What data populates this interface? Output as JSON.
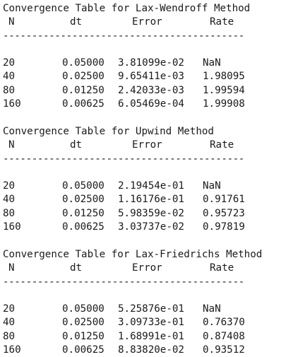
{
  "tables": [
    {
      "title": "Convergence Table for Lax-Wendroff Method",
      "headers": {
        "n": "N",
        "dt": "dt",
        "error": "Error",
        "rate": "Rate"
      },
      "divider": "------------------------------------------",
      "rows": [
        {
          "n": "20",
          "dt": "0.05000",
          "error": "3.81099e-02",
          "rate": "NaN"
        },
        {
          "n": "40",
          "dt": "0.02500",
          "error": "9.65411e-03",
          "rate": "1.98095"
        },
        {
          "n": "80",
          "dt": "0.01250",
          "error": "2.42033e-03",
          "rate": "1.99594"
        },
        {
          "n": "160",
          "dt": "0.00625",
          "error": "6.05469e-04",
          "rate": "1.99908"
        }
      ]
    },
    {
      "title": "Convergence Table for Upwind Method",
      "headers": {
        "n": "N",
        "dt": "dt",
        "error": "Error",
        "rate": "Rate"
      },
      "divider": "------------------------------------------",
      "rows": [
        {
          "n": "20",
          "dt": "0.05000",
          "error": "2.19454e-01",
          "rate": "NaN"
        },
        {
          "n": "40",
          "dt": "0.02500",
          "error": "1.16176e-01",
          "rate": "0.91761"
        },
        {
          "n": "80",
          "dt": "0.01250",
          "error": "5.98359e-02",
          "rate": "0.95723"
        },
        {
          "n": "160",
          "dt": "0.00625",
          "error": "3.03737e-02",
          "rate": "0.97819"
        }
      ]
    },
    {
      "title": "Convergence Table for Lax-Friedrichs Method",
      "headers": {
        "n": "N",
        "dt": "dt",
        "error": "Error",
        "rate": "Rate"
      },
      "divider": "------------------------------------------",
      "rows": [
        {
          "n": "20",
          "dt": "0.05000",
          "error": "5.25876e-01",
          "rate": "NaN"
        },
        {
          "n": "40",
          "dt": "0.02500",
          "error": "3.09733e-01",
          "rate": "0.76370"
        },
        {
          "n": "80",
          "dt": "0.01250",
          "error": "1.68991e-01",
          "rate": "0.87408"
        },
        {
          "n": "160",
          "dt": "0.00625",
          "error": "8.83820e-02",
          "rate": "0.93512"
        }
      ]
    }
  ]
}
